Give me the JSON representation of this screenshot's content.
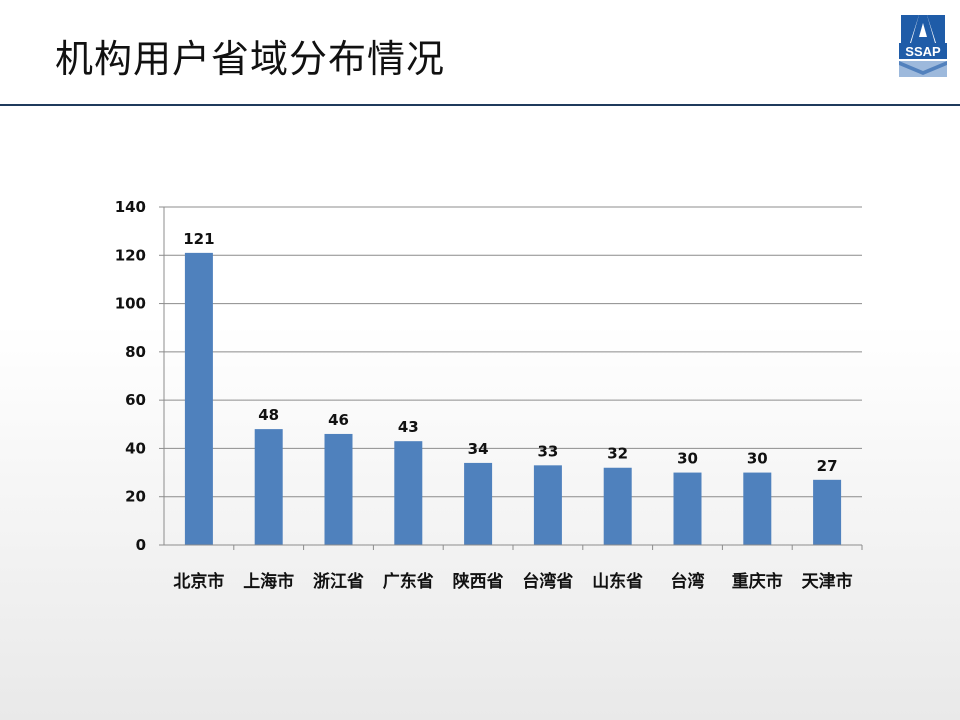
{
  "slide": {
    "title": "机构用户省域分布情况",
    "logo_text": "SSAP"
  },
  "colors": {
    "bar": "#4f81bd",
    "rule": "#1f3a5c",
    "logo_blue": "#1f5ca8"
  },
  "chart_data": {
    "type": "bar",
    "title": "",
    "xlabel": "",
    "ylabel": "",
    "categories": [
      "北京市",
      "上海市",
      "浙江省",
      "广东省",
      "陕西省",
      "台湾省",
      "山东省",
      "台湾",
      "重庆市",
      "天津市"
    ],
    "values": [
      121,
      48,
      46,
      43,
      34,
      33,
      32,
      30,
      30,
      27
    ],
    "ylim": [
      0,
      140
    ],
    "yticks": [
      0,
      20,
      40,
      60,
      80,
      100,
      120,
      140
    ],
    "grid": true,
    "legend": "none",
    "data_labels": true
  }
}
